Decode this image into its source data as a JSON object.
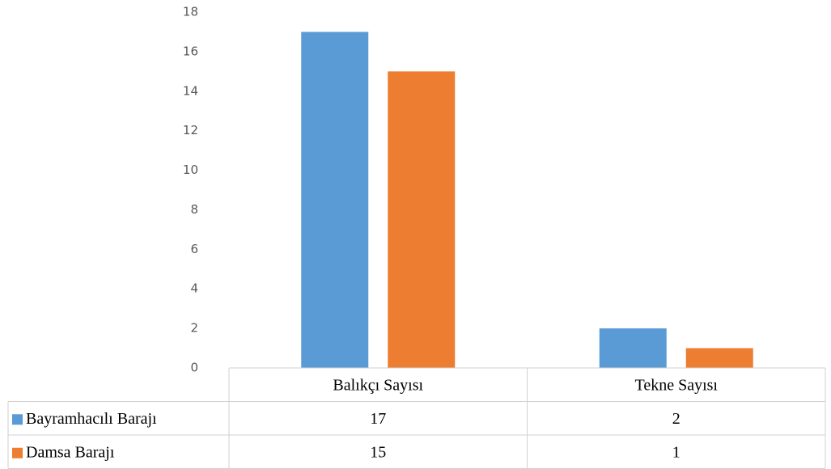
{
  "chart_data": {
    "type": "bar",
    "categories": [
      "Balıkçı Sayısı",
      "Tekne Sayısı"
    ],
    "series": [
      {
        "name": "Bayramhacılı Barajı",
        "color": "#5b9bd5",
        "values": [
          17,
          2
        ]
      },
      {
        "name": "Damsa Barajı",
        "color": "#ed7d31",
        "values": [
          15,
          1
        ]
      }
    ],
    "ylim": [
      0,
      18
    ],
    "yticks": [
      0,
      2,
      4,
      6,
      8,
      10,
      12,
      14,
      16,
      18
    ],
    "grid": false
  }
}
